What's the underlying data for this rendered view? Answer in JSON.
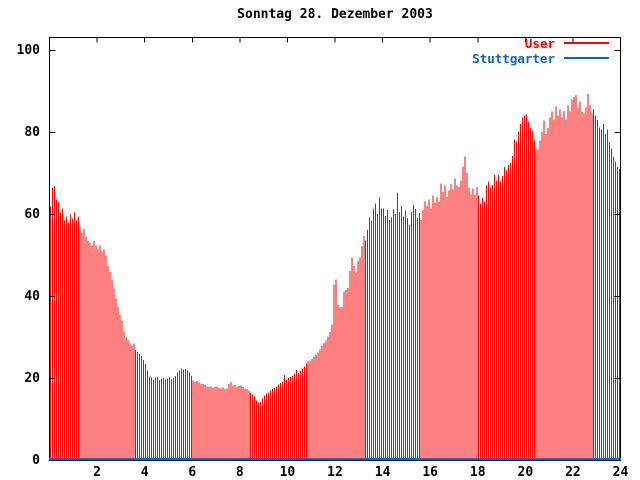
{
  "title": "Sonntag 28. Dezember 2003",
  "legend": {
    "entries": [
      {
        "label": "User",
        "color": "#ff0000"
      },
      {
        "label": "Stuttgarter",
        "color": "#0a62d0"
      }
    ]
  },
  "axes": {
    "x": {
      "min": 0,
      "max": 24,
      "tick_values": [
        2,
        4,
        6,
        8,
        10,
        12,
        14,
        16,
        18,
        20,
        22,
        24
      ]
    },
    "y": {
      "min": 0,
      "max": 100,
      "tick_values": [
        0,
        20,
        40,
        60,
        80,
        100
      ]
    }
  },
  "chart_data": {
    "type": "bar",
    "title": "Sonntag 28. Dezember 2003",
    "xlabel": "",
    "ylabel": "",
    "x_unit": "hour of day",
    "x_start_hour": 0,
    "x_step_hours": 0.08333,
    "xlim": [
      0,
      24
    ],
    "ylim": [
      0,
      100
    ],
    "grid": false,
    "legend_position": "top-right-inside",
    "series": [
      {
        "name": "User",
        "color": "#ff0000",
        "style": "impulses",
        "values": [
          62,
          66.5,
          67,
          63.5,
          63,
          60.5,
          61.5,
          58.5,
          59.5,
          58,
          60,
          59,
          60.5,
          58.5,
          59.5,
          57,
          55.5,
          56.5,
          54.5,
          53.5,
          53,
          52.5,
          53.5,
          52.5,
          51.5,
          52.5,
          51,
          51.5,
          50,
          47.5,
          46,
          44,
          42,
          39.5,
          37.5,
          35.5,
          34,
          31.5,
          30,
          29.5,
          28.5,
          28,
          28.5,
          27,
          26.5,
          26,
          25.5,
          24.5,
          23.5,
          22,
          20.5,
          20.3,
          19.8,
          20.2,
          20.4,
          19.6,
          19.9,
          20.1,
          19.7,
          20,
          20.3,
          19.8,
          20.1,
          20.6,
          21.5,
          22,
          22.4,
          22.2,
          22.3,
          22,
          21.5,
          20.6,
          19.5,
          19.2,
          19.4,
          19,
          18.8,
          18.6,
          18.4,
          18.1,
          17.9,
          18,
          17.7,
          17.9,
          17.9,
          17.7,
          17.6,
          17.8,
          17.5,
          17.6,
          18.6,
          19.1,
          18.3,
          18.4,
          18.1,
          18.2,
          18.3,
          17.9,
          17.6,
          17.5,
          17.1,
          16.6,
          16.1,
          15.6,
          14.6,
          14.1,
          14.3,
          15.1,
          15.9,
          16.3,
          16.6,
          17.1,
          17.4,
          17.7,
          18.1,
          18.5,
          18.9,
          19.1,
          20.9,
          19.6,
          20.1,
          20.4,
          20.6,
          21.1,
          22.1,
          21.4,
          21.9,
          22.4,
          22.9,
          23.6,
          24.1,
          24.4,
          24.8,
          25.2,
          25.8,
          26.3,
          27.1,
          27.9,
          28.6,
          29.3,
          30.2,
          31.4,
          33.2,
          42.9,
          44.1,
          37.9,
          37.3,
          37.4,
          41.2,
          41.6,
          42.1,
          46.2,
          49.5,
          47.4,
          45.8,
          48.6,
          49.5,
          52.3,
          54.8,
          53.6,
          56.2,
          59.3,
          58.5,
          61.5,
          62.7,
          60.1,
          64.2,
          61.5,
          61.5,
          59.6,
          61.1,
          58.6,
          59.3,
          61.2,
          60.1,
          65.2,
          60.6,
          62.1,
          59.5,
          61,
          59.1,
          57.6,
          60.6,
          62.5,
          61.3,
          59.1,
          60.4,
          58.6,
          61.1,
          63.2,
          62.1,
          63.7,
          61.5,
          64.6,
          62.9,
          64.3,
          63.1,
          67.6,
          65.5,
          67.1,
          64.3,
          65.9,
          67.4,
          66.1,
          68.8,
          67.1,
          66.7,
          68.3,
          71.7,
          74.2,
          70.1,
          66.6,
          64.9,
          66.3,
          64.8,
          66.7,
          64.6,
          62.6,
          64.2,
          63.1,
          67.1,
          68.1,
          66.6,
          67.2,
          69.6,
          68.3,
          69.6,
          68.1,
          69.4,
          71.6,
          70.7,
          72.1,
          72.6,
          74.3,
          78.3,
          77.8,
          80.3,
          82.1,
          83.6,
          84.1,
          84.4,
          82.6,
          81.1,
          80.4,
          78.1,
          76.1,
          75.8,
          78.1,
          80.1,
          82.9,
          79.6,
          81.1,
          83.7,
          85.1,
          83.2,
          86.4,
          84.1,
          85.6,
          83.6,
          85.3,
          83.1,
          86.6,
          85.1,
          88.1,
          88.6,
          89.1,
          86.1,
          87.6,
          85.1,
          84.6,
          86.1,
          89.4,
          86.6,
          84.6,
          85.7,
          84.1,
          83.1,
          81.2,
          80.7,
          82.1,
          79.6,
          80.7,
          77.7,
          76.1,
          74.1,
          72.9,
          71.6,
          71.1
        ]
      },
      {
        "name": "Stuttgarter",
        "color": "#0a62d0",
        "style": "line",
        "constant_value": 0.3
      }
    ]
  }
}
